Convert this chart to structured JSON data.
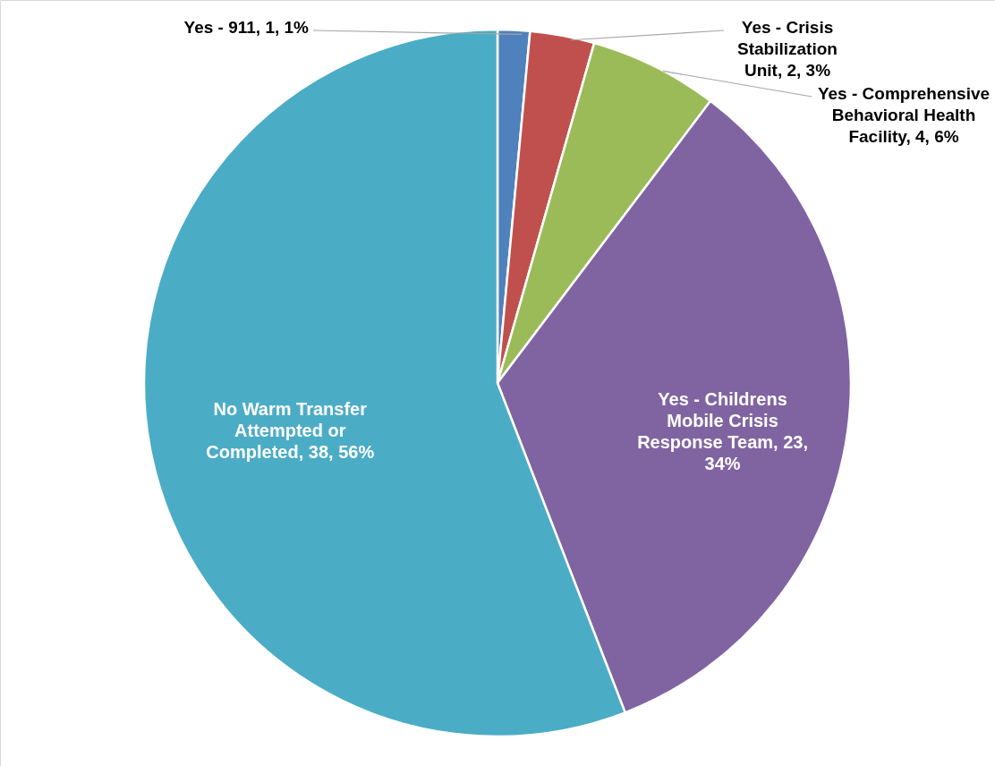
{
  "chart_data": {
    "type": "pie",
    "categories": [
      "Yes - 911",
      "Yes - Crisis Stabilization Unit",
      "Yes - Comprehensive Behavioral Health Facility",
      "Yes - Childrens Mobile Crisis Response Team",
      "No Warm Transfer Attempted or Completed"
    ],
    "values": [
      1,
      2,
      4,
      23,
      38
    ],
    "value_labels": [
      "1, 1%",
      "2, 3%",
      "4, 6%",
      "23, 34%",
      "38, 56%"
    ],
    "colors": [
      "#4f81bd",
      "#c0504d",
      "#9bbb59",
      "#8064a2",
      "#4bacc6"
    ]
  }
}
